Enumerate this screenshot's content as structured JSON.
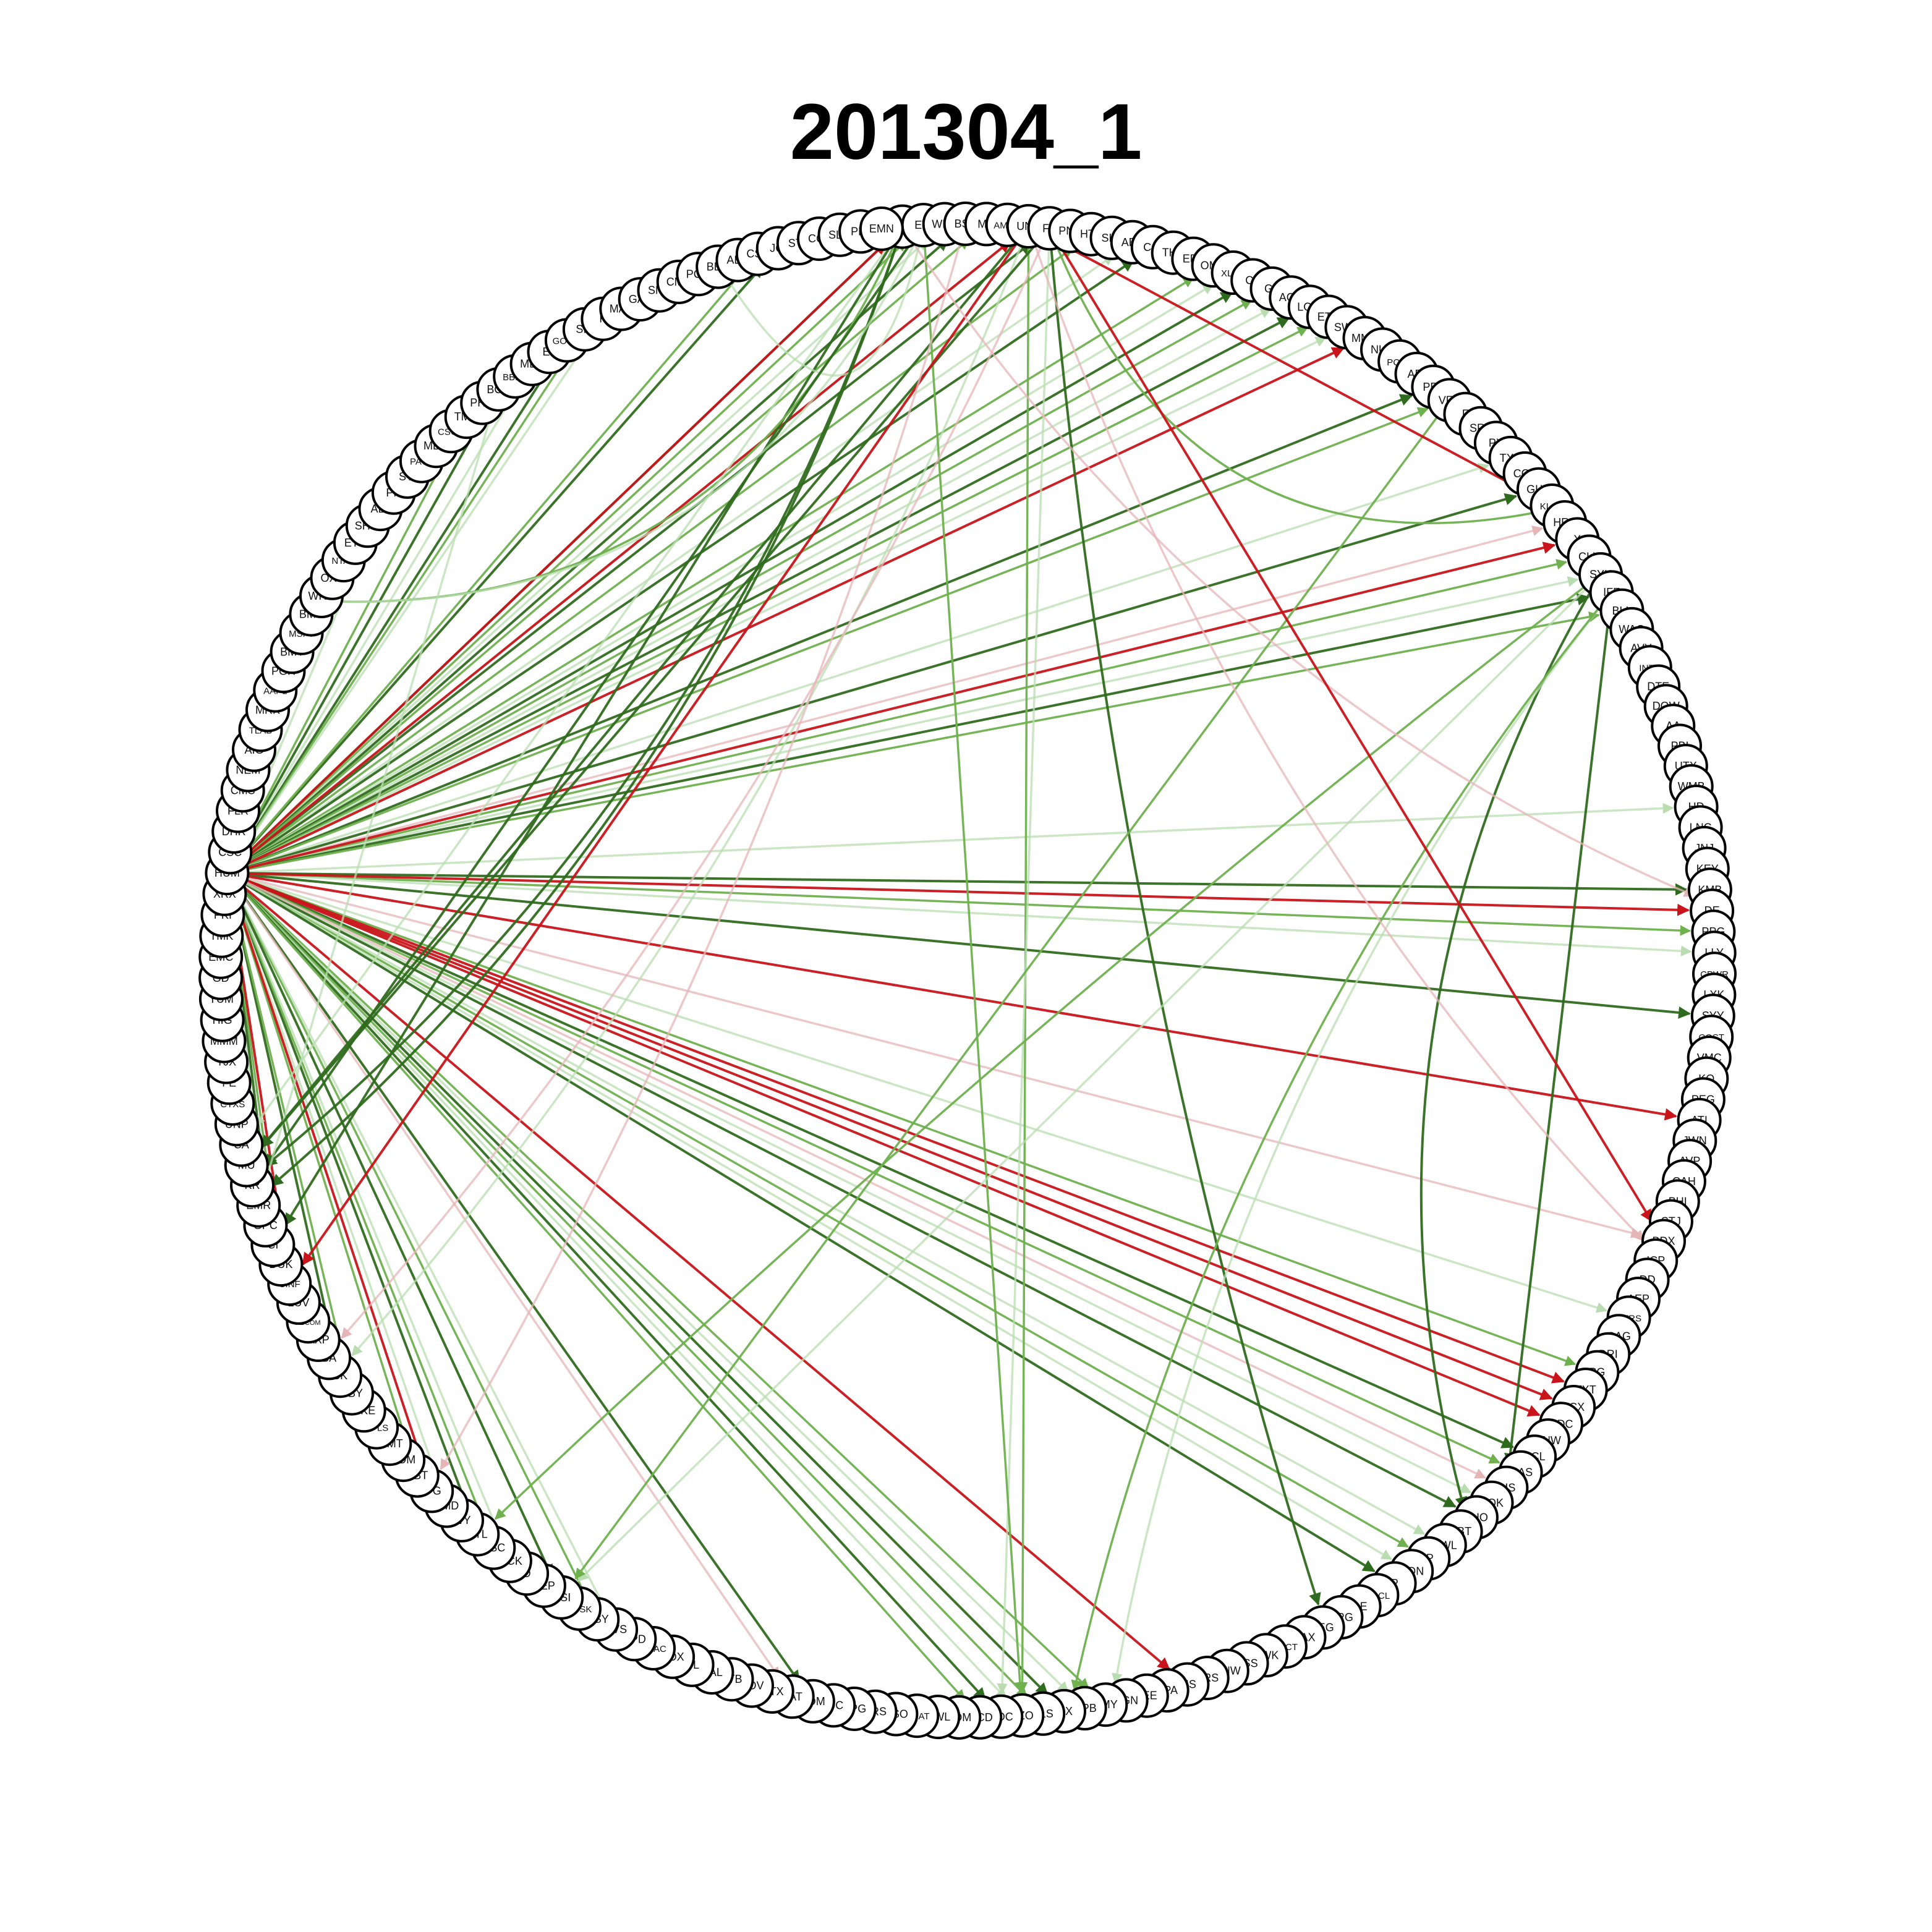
{
  "title": "201304_1",
  "colors": {
    "positive_strong": "#2f6b1e",
    "positive_mid": "#6fb04f",
    "positive_light": "#b9ddb0",
    "negative_strong": "#c8141a",
    "negative_light": "#e5b5b8",
    "node_fill": "#ffffff",
    "node_stroke": "#000000"
  },
  "nodes": [
    "NOC",
    "EW",
    "WFC",
    "BSX",
    "MO",
    "AMGN",
    "UNH",
    "FB",
    "PNC",
    "HTV",
    "SLB",
    "AES",
    "CCI",
    "THA",
    "EFX",
    "OMC",
    "XLNX",
    "CF",
    "GT",
    "AGN",
    "LOW",
    "ETN",
    "SWY",
    "MMC",
    "NUE",
    "PCAR",
    "ADI",
    "PPL",
    "VFC",
    "F",
    "SRE",
    "PX",
    "TXN",
    "CCE",
    "GLW",
    "KLAC",
    "HRB",
    "X",
    "CLX",
    "SYK",
    "IFF",
    "BLL",
    "WAG",
    "AVY",
    "INTC",
    "DTE",
    "DOW",
    "AA",
    "PBI",
    "UTX",
    "WMB",
    "HD",
    "LNC",
    "JNJ",
    "KEY",
    "KMB",
    "DE",
    "PPG",
    "LLY",
    "CPWR",
    "LXK",
    "SYY",
    "COST",
    "VMC",
    "KO",
    "PEG",
    "ATI",
    "JWN",
    "AVP",
    "CAH",
    "BHI",
    "STJ",
    "BDX",
    "ICP",
    "DD",
    "AEP",
    "NTRS",
    "CAG",
    "DRI",
    "PG",
    "TXT",
    "FCX",
    "RDC",
    "PNW",
    "ECL",
    "MAS",
    "DIS",
    "ROK",
    "THO",
    "ABT",
    "NWL",
    "IP",
    "HON",
    "R",
    "ORCL",
    "GE",
    "ARG",
    "LEG",
    "BAX",
    "PBCT",
    "SWK",
    "ESS",
    "GNW",
    "ERS",
    "SIS",
    "APA",
    "LEE",
    "PGN",
    "BMY",
    "GPB",
    "FIX",
    "FLS",
    "AZO",
    "CDC",
    "MCD",
    "ADM",
    "NWL",
    "AMAT",
    "RSO",
    "ARS",
    "RPG",
    "IOC",
    "TOM",
    "PAT",
    "MTX",
    "NOV",
    "FTB",
    "HAL",
    "CL",
    "EDX",
    "NBAC",
    "APD",
    "EVS",
    "HSY",
    "ADSK",
    "CSI",
    "PEP",
    "D",
    "MCK",
    "NSC",
    "STL",
    "WY",
    "AMD",
    "IPG",
    "BBT",
    "ADM",
    "WMT",
    "SPLS",
    "NKE",
    "BBY",
    "BK",
    "BA",
    "AXP",
    "ABCOM",
    "LUV",
    "CINF",
    "DUK",
    "CI",
    "GPC",
    "EMR",
    "KR",
    "MU",
    "CA",
    "UNP",
    "CTXS",
    "FE",
    "TJX",
    "MMM",
    "HIG",
    "YUM",
    "GD",
    "EMC",
    "TMK",
    "PKI",
    "XRX",
    "HUM",
    "CSC",
    "DHR",
    "FLR",
    "CMS",
    "NEM",
    "AIG",
    "TLAB",
    "MRK",
    "AAPL",
    "PGR",
    "BMY",
    "MSFT",
    "BMS",
    "WHR",
    "OXY",
    "NTAP",
    "ETR",
    "SHW",
    "ALL",
    "PH",
    "STI",
    "PAYX",
    "MDR",
    "CSCO",
    "TMO",
    "PHM",
    "BCR",
    "BBBY",
    "MDT",
    "EL",
    "GOOG",
    "SIA",
    "K",
    "MAS",
    "GAS",
    "SNA",
    "CMA",
    "PCG",
    "BEN",
    "AEE",
    "CSX",
    "JCI",
    "STT",
    "CCL",
    "SLM",
    "PLL",
    "EMN"
  ],
  "hub": "HUM",
  "edges_from_hub": {
    "positive": [
      "NOC",
      "EW",
      "WFC",
      "BSX",
      "MO",
      "UNH",
      "FB",
      "HTV",
      "AES",
      "CCI",
      "OMC",
      "XLNX",
      "CF",
      "GT",
      "AGN",
      "LOW",
      "ETN",
      "SWY",
      "PPL",
      "VFC",
      "TXN",
      "GLW",
      "CLX",
      "SYK",
      "IFF",
      "BLL",
      "HD",
      "KMB",
      "PPG",
      "LLY",
      "SYY",
      "PG",
      "NTRS",
      "ECL",
      "MAS",
      "ROK",
      "THO",
      "IP",
      "HON",
      "R",
      "BMY",
      "GPB",
      "FIX",
      "FLS",
      "AZO",
      "CDC",
      "MCD",
      "NWL",
      "TOM",
      "HSY",
      "EVS",
      "STL",
      "NSC",
      "MCK",
      "CSI",
      "BBT",
      "AMD",
      "BK",
      "BBY",
      "GPC",
      "CI",
      "DUK",
      "UNP",
      "CA",
      "FE",
      "TJX",
      "WHR",
      "BMS",
      "AAPL",
      "BCR",
      "TMO",
      "MDT",
      "GOOG",
      "SIA",
      "K",
      "JCI",
      "CSX",
      "ALL"
    ],
    "negative": [
      "NOC",
      "UNH",
      "MMC",
      "HRB",
      "X",
      "DE",
      "ATI",
      "BDX",
      "FCX",
      "RDC",
      "TXT",
      "DIS",
      "CINF",
      "BMS",
      "IPG",
      "PAT",
      "SIS"
    ]
  },
  "edges_other": {
    "positive": [
      [
        "NOC",
        "CI"
      ],
      [
        "NOC",
        "BMS"
      ],
      [
        "NOC",
        "CA"
      ],
      [
        "NOC",
        "KR"
      ],
      [
        "UNH",
        "AZO"
      ],
      [
        "UNH",
        "BK"
      ],
      [
        "UNH",
        "MU"
      ],
      [
        "FB",
        "HRB"
      ],
      [
        "FB",
        "CDC"
      ],
      [
        "FB",
        "LEG"
      ],
      [
        "EW",
        "AZO"
      ],
      [
        "EW",
        "PCG"
      ],
      [
        "EW",
        "KR"
      ],
      [
        "SYK",
        "STL"
      ],
      [
        "SYK",
        "CSI"
      ],
      [
        "SYK",
        "ABT"
      ],
      [
        "VFC",
        "CSI"
      ],
      [
        "IFF",
        "BMY"
      ],
      [
        "IFF",
        "DIS"
      ],
      [
        "IFF",
        "FIX"
      ],
      [
        "BCR",
        "EMR"
      ],
      [
        "NOC",
        "EMR"
      ],
      [
        "UNH",
        "NOC"
      ],
      [
        "EW",
        "BMS"
      ],
      [
        "FB",
        "MU"
      ]
    ],
    "negative": [
      [
        "UNH",
        "CINF"
      ],
      [
        "BSX",
        "IPG"
      ],
      [
        "BMS",
        "CSC"
      ],
      [
        "NOC",
        "DE"
      ],
      [
        "FB",
        "BDX"
      ],
      [
        "UNH",
        "ICP"
      ],
      [
        "CSC",
        "MRK"
      ],
      [
        "FB",
        "BA"
      ],
      [
        "UNH",
        "KLAC"
      ]
    ]
  }
}
